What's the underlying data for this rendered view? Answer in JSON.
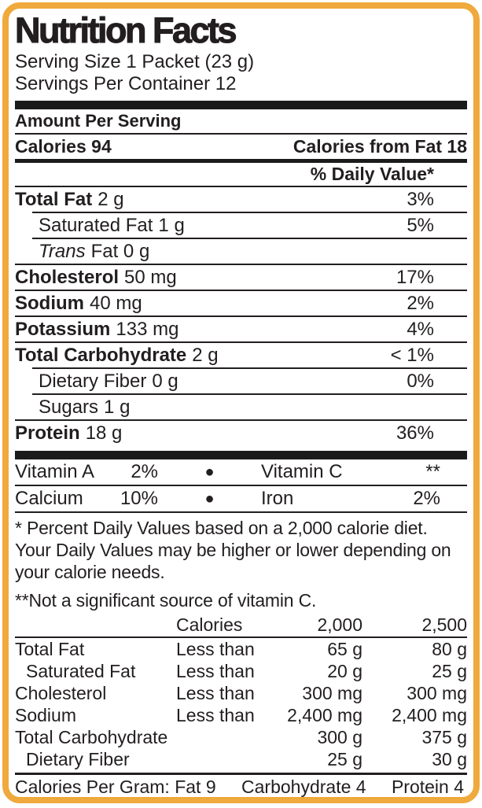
{
  "border_color": "#efa93c",
  "text_color": "#221e1f",
  "header": {
    "title": "Nutrition Facts",
    "serving_size": "Serving Size 1 Packet (23 g)",
    "servings_per_container": "Servings Per Container 12"
  },
  "amount_section": {
    "heading": "Amount Per Serving",
    "calories": "Calories 94",
    "calories_from_fat": "Calories from Fat 18",
    "daily_value_header": "% Daily Value*"
  },
  "nutrients": [
    {
      "name": "Total Fat",
      "amount": "2 g",
      "dv": "3%",
      "style": "bold",
      "indent": false
    },
    {
      "name": "Saturated Fat",
      "amount": "1 g",
      "dv": "5%",
      "style": "regular",
      "indent": true
    },
    {
      "name": "Trans",
      "amount": "Fat 0 g",
      "dv": "",
      "style": "italic",
      "indent": true
    },
    {
      "name": "Cholesterol",
      "amount": "50 mg",
      "dv": "17%",
      "style": "bold",
      "indent": false
    },
    {
      "name": "Sodium",
      "amount": "40 mg",
      "dv": "2%",
      "style": "bold",
      "indent": false
    },
    {
      "name": "Potassium",
      "amount": "133 mg",
      "dv": "4%",
      "style": "bold",
      "indent": false
    },
    {
      "name": "Total Carbohydrate",
      "amount": "2 g",
      "dv": "< 1%",
      "style": "bold",
      "indent": false
    },
    {
      "name": "Dietary Fiber",
      "amount": "0 g",
      "dv": "0%",
      "style": "regular",
      "indent": true
    },
    {
      "name": "Sugars",
      "amount": "1 g",
      "dv": "",
      "style": "regular",
      "indent": true
    },
    {
      "name": "Protein",
      "amount": "18 g",
      "dv": "36%",
      "style": "bold",
      "indent": false
    }
  ],
  "vitamins": [
    {
      "left_name": "Vitamin A",
      "left_value": "2%",
      "bullet": "●",
      "right_name": "Vitamin C",
      "right_value": "**"
    },
    {
      "left_name": "Calcium",
      "left_value": "10%",
      "bullet": "●",
      "right_name": "Iron",
      "right_value": "2%"
    }
  ],
  "footnotes": {
    "daily_values": "* Percent Daily Values based on a 2,000 calorie diet. Your Daily Values may be higher or lower depending on your calorie needs.",
    "vitamin_c": "**Not a significant source of vitamin C."
  },
  "reference_table": {
    "header": {
      "calories_label": "Calories",
      "col_2000": "2,000",
      "col_2500": "2,500"
    },
    "rows": [
      {
        "name": "Total Fat",
        "qualifier": "Less than",
        "v2000": "65 g",
        "v2500": "80 g",
        "indent": false
      },
      {
        "name": "Saturated Fat",
        "qualifier": "Less than",
        "v2000": "20 g",
        "v2500": "25 g",
        "indent": true
      },
      {
        "name": "Cholesterol",
        "qualifier": "Less than",
        "v2000": "300 mg",
        "v2500": "300 mg",
        "indent": false
      },
      {
        "name": "Sodium",
        "qualifier": "Less than",
        "v2000": "2,400 mg",
        "v2500": "2,400 mg",
        "indent": false
      },
      {
        "name": "Total Carbohydrate",
        "qualifier": "",
        "v2000": "300 g",
        "v2500": "375 g",
        "indent": false
      },
      {
        "name": "Dietary Fiber",
        "qualifier": "",
        "v2000": "25 g",
        "v2500": "30 g",
        "indent": true
      }
    ]
  },
  "calories_per_gram": {
    "fat": "Calories Per Gram: Fat 9",
    "carbohydrate": "Carbohydrate 4",
    "protein": "Protein 4"
  }
}
